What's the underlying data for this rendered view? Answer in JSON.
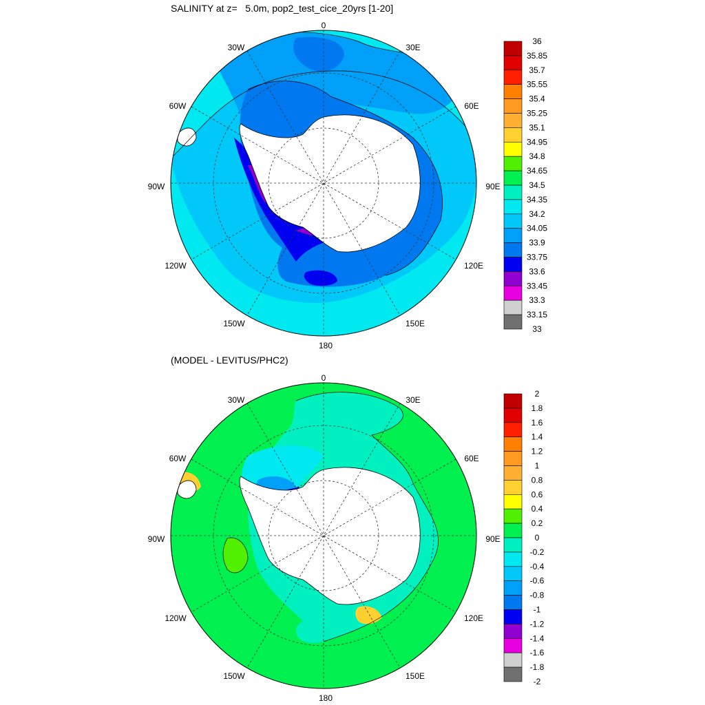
{
  "panels": [
    {
      "title": "SALINITY at z=   5.0m, pop2_test_cice_20yrs [1-20]",
      "colorbar": {
        "labels": [
          "36",
          "35.85",
          "35.7",
          "35.55",
          "35.4",
          "35.25",
          "35.1",
          "34.95",
          "34.8",
          "34.65",
          "34.5",
          "34.35",
          "34.2",
          "34.05",
          "33.9",
          "33.75",
          "33.6",
          "33.45",
          "33.3",
          "33.15",
          "33"
        ],
        "colors": [
          "#c00000",
          "#e00000",
          "#ff2000",
          "#ff8000",
          "#ff9a20",
          "#ffb030",
          "#ffd030",
          "#ffff00",
          "#50f000",
          "#00f050",
          "#00f0c0",
          "#00e8f0",
          "#00c8f8",
          "#00a0f8",
          "#0078f0",
          "#0000f0",
          "#9000d0",
          "#e800e0",
          "#d0d0d0",
          "#707070"
        ]
      }
    },
    {
      "title": "(MODEL - LEVITUS/PHC2)",
      "colorbar": {
        "labels": [
          "2",
          "1.8",
          "1.6",
          "1.4",
          "1.2",
          "1",
          "0.8",
          "0.6",
          "0.4",
          "0.2",
          "0",
          "-0.2",
          "-0.4",
          "-0.6",
          "-0.8",
          "-1",
          "-1.2",
          "-1.4",
          "-1.6",
          "-1.8",
          "-2"
        ],
        "colors": [
          "#c00000",
          "#e00000",
          "#ff2000",
          "#ff8000",
          "#ff9a20",
          "#ffb030",
          "#ffd030",
          "#ffff00",
          "#50f000",
          "#00f050",
          "#00f0c0",
          "#00e8f0",
          "#00c8f8",
          "#00a0f8",
          "#0078f0",
          "#0000f0",
          "#9000d0",
          "#e800e0",
          "#d0d0d0",
          "#707070"
        ]
      }
    }
  ],
  "longitude_labels": [
    "0",
    "30E",
    "60E",
    "90E",
    "120E",
    "150E",
    "180",
    "150W",
    "120W",
    "90W",
    "60W",
    "30W"
  ],
  "map_style": {
    "projection": "south-polar-stereographic",
    "grid": "dashed",
    "land_color": "#ffffff",
    "coastline_color": "#000000"
  }
}
